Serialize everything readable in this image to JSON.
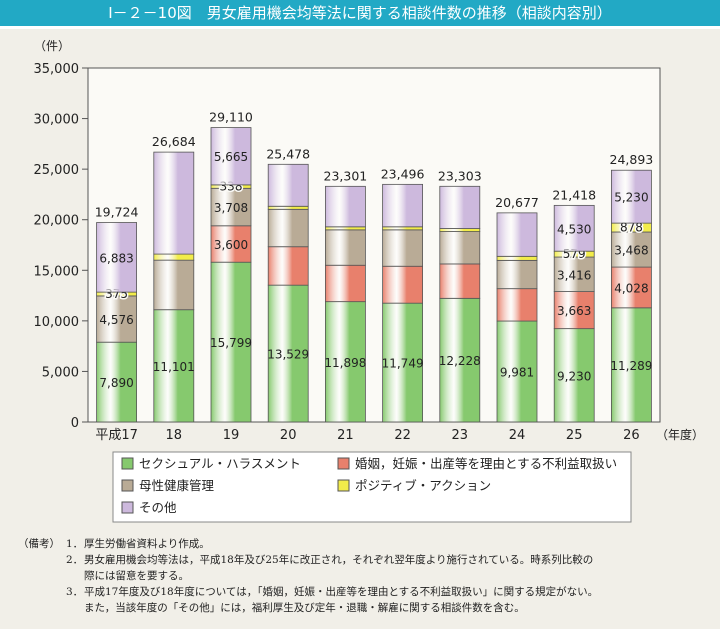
{
  "title": "Ⅰ－２－10図　男女雇用機会均等法に関する相談件数の推移（相談内容別）",
  "chart_data": {
    "type": "bar",
    "stacked": true,
    "ylabel": "（件）",
    "xlabel_suffix": "（年度）",
    "ylim": [
      0,
      35000
    ],
    "yticks": [
      "0",
      "5,000",
      "10,000",
      "15,000",
      "20,000",
      "25,000",
      "30,000",
      "35,000"
    ],
    "categories": [
      "平成17",
      "18",
      "19",
      "20",
      "21",
      "22",
      "23",
      "24",
      "25",
      "26"
    ],
    "series": [
      {
        "name": "セクシュアル・ハラスメント",
        "color": "#86c96e",
        "values": [
          7890,
          11101,
          15799,
          13529,
          11898,
          11749,
          12228,
          9981,
          9230,
          11289
        ],
        "labels": [
          "7,890",
          "11,101",
          "15,799",
          "13,529",
          "11,898",
          "11,749",
          "12,228",
          "9,981",
          "9,230",
          "11,289"
        ]
      },
      {
        "name": "婚姻，妊娠・出産等を理由とする不利益取扱い",
        "color": "#e8806c",
        "values": [
          0,
          0,
          3600,
          3800,
          3600,
          3650,
          3400,
          3200,
          3663,
          4028
        ],
        "labels": [
          "",
          "",
          "3,600",
          "",
          "",
          "",
          "",
          "",
          "3,663",
          "4,028"
        ]
      },
      {
        "name": "母性健康管理",
        "color": "#b9ab96",
        "values": [
          4576,
          4900,
          3708,
          3700,
          3500,
          3600,
          3200,
          2800,
          3416,
          3468
        ],
        "labels": [
          "4,576",
          "",
          "3,708",
          "",
          "",
          "",
          "",
          "",
          "3,416",
          "3,468"
        ]
      },
      {
        "name": "ポジティブ・アクション",
        "color": "#f2ec4a",
        "values": [
          375,
          600,
          338,
          300,
          300,
          300,
          300,
          400,
          579,
          878
        ],
        "labels": [
          "375",
          "",
          "338",
          "",
          "",
          "",
          "",
          "",
          "579",
          "878"
        ]
      },
      {
        "name": "その他",
        "color": "#cdb9dd",
        "values": [
          6883,
          10083,
          5665,
          4149,
          4003,
          4197,
          4175,
          4296,
          4530,
          5230
        ],
        "labels": [
          "6,883",
          "",
          "5,665",
          "",
          "",
          "",
          "",
          "",
          "4,530",
          "5,230"
        ]
      }
    ],
    "totals": [
      "19,724",
      "26,684",
      "29,110",
      "25,478",
      "23,301",
      "23,496",
      "23,303",
      "20,677",
      "21,418",
      "24,893"
    ],
    "legend_placement": "bottom",
    "grid": false
  },
  "notes": {
    "lead": "（備考）",
    "items": [
      {
        "num": "1．",
        "text": "厚生労働省資料より作成。"
      },
      {
        "num": "2．",
        "text": "男女雇用機会均等法は，平成18年及び25年に改正され，それぞれ翌年度より施行されている。時系列比較の",
        "cont": "際には留意を要する。"
      },
      {
        "num": "3．",
        "text": "平成17年度及び18年度については，「婚姻，妊娠・出産等を理由とする不利益取扱い」に関する規定がない。",
        "cont": "また，当該年度の「その他」には，福利厚生及び定年・退職・解雇に関する相談件数を含む。"
      }
    ]
  }
}
